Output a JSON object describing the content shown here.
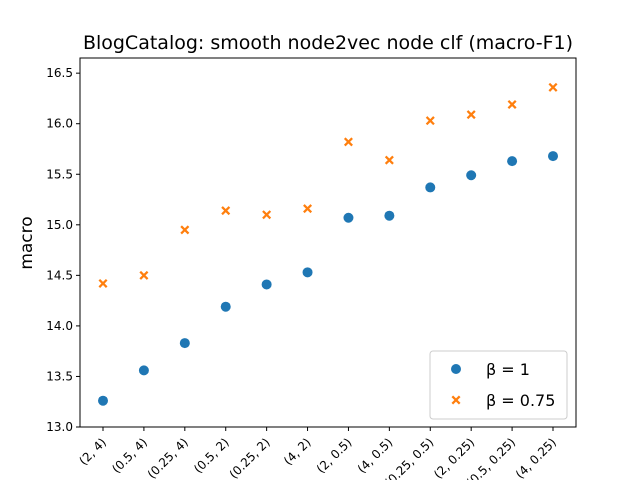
{
  "chart_data": {
    "type": "scatter",
    "title": "BlogCatalog: smooth node2vec node clf (macro-F1)",
    "xlabel": "",
    "ylabel": "macro",
    "categories": [
      "(2, 4)",
      "(0.5, 4)",
      "(0.25, 4)",
      "(0.5, 2)",
      "(0.25, 2)",
      "(4, 2)",
      "(2, 0.5)",
      "(4, 0.5)",
      "(0.25, 0.5)",
      "(2, 0.25)",
      "(0.5, 0.25)",
      "(4, 0.25)"
    ],
    "ylim": [
      13.0,
      16.65
    ],
    "yticks": [
      13.0,
      13.5,
      14.0,
      14.5,
      15.0,
      15.5,
      16.0,
      16.5
    ],
    "ytick_labels": [
      "13.0",
      "13.5",
      "14.0",
      "14.5",
      "15.0",
      "15.5",
      "16.0",
      "16.5"
    ],
    "grid": false,
    "legend_position": "lower-right",
    "series": [
      {
        "name": "β = 1",
        "legend_label": "β = 1",
        "marker": "circle",
        "color": "#1f77b4",
        "values": [
          13.26,
          13.56,
          13.83,
          14.19,
          14.41,
          14.53,
          15.07,
          15.09,
          15.37,
          15.49,
          15.63,
          15.68
        ]
      },
      {
        "name": "β = 0.75",
        "legend_label": "β = 0.75",
        "marker": "x",
        "color": "#ff7f0e",
        "values": [
          14.42,
          14.5,
          14.95,
          15.14,
          15.1,
          15.16,
          15.82,
          15.64,
          16.03,
          16.09,
          16.19,
          16.36
        ]
      }
    ]
  }
}
